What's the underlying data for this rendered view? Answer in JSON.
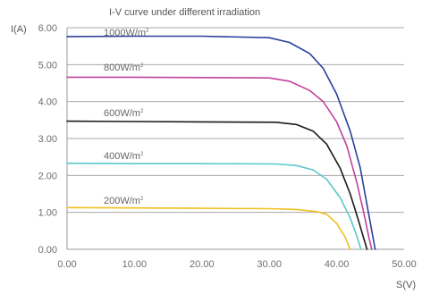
{
  "chart_data": {
    "type": "line",
    "title": "I-V curve under different irradiation",
    "ylabel": "I(A)",
    "xlabel": "S(V)",
    "xlim": [
      0,
      50
    ],
    "ylim": [
      0,
      6
    ],
    "xticks": [
      "0.00",
      "10.00",
      "20.00",
      "30.00",
      "40.00",
      "50.00"
    ],
    "yticks": [
      "0.00",
      "1.00",
      "2.00",
      "3.00",
      "4.00",
      "5.00",
      "6.00"
    ],
    "grid": "horizontal",
    "series": [
      {
        "name": "1000W/m²",
        "label_main": "1000W/m",
        "label_sup": "2",
        "color": "#2b3f9e",
        "points": [
          [
            0,
            5.76
          ],
          [
            10,
            5.77
          ],
          [
            20,
            5.77
          ],
          [
            30,
            5.73
          ],
          [
            33,
            5.6
          ],
          [
            36,
            5.3
          ],
          [
            38,
            4.9
          ],
          [
            40,
            4.2
          ],
          [
            42,
            3.2
          ],
          [
            43.5,
            2.2
          ],
          [
            44.5,
            1.2
          ],
          [
            45.3,
            0.4
          ],
          [
            45.7,
            0
          ]
        ]
      },
      {
        "name": "800W/m²",
        "label_main": "800W/m",
        "label_sup": "2",
        "color": "#c0429a",
        "points": [
          [
            0,
            4.66
          ],
          [
            10,
            4.66
          ],
          [
            20,
            4.65
          ],
          [
            30,
            4.64
          ],
          [
            33,
            4.55
          ],
          [
            36,
            4.3
          ],
          [
            38,
            4.0
          ],
          [
            40,
            3.45
          ],
          [
            41.5,
            2.8
          ],
          [
            43,
            1.8
          ],
          [
            44,
            1.0
          ],
          [
            44.8,
            0.3
          ],
          [
            45.2,
            0
          ]
        ]
      },
      {
        "name": "600W/m²",
        "label_main": "600W/m",
        "label_sup": "2",
        "color": "#1a1a1a",
        "points": [
          [
            0,
            3.47
          ],
          [
            10,
            3.46
          ],
          [
            20,
            3.45
          ],
          [
            31,
            3.44
          ],
          [
            34,
            3.38
          ],
          [
            36.5,
            3.2
          ],
          [
            38.5,
            2.85
          ],
          [
            40.5,
            2.2
          ],
          [
            42,
            1.5
          ],
          [
            43.2,
            0.8
          ],
          [
            44,
            0.3
          ],
          [
            44.5,
            0
          ]
        ]
      },
      {
        "name": "400W/m²",
        "label_main": "400W/m",
        "label_sup": "2",
        "color": "#5cc8cc",
        "points": [
          [
            0,
            2.33
          ],
          [
            10,
            2.32
          ],
          [
            20,
            2.32
          ],
          [
            31,
            2.31
          ],
          [
            34,
            2.27
          ],
          [
            36.5,
            2.15
          ],
          [
            38.5,
            1.9
          ],
          [
            40.5,
            1.4
          ],
          [
            42,
            0.85
          ],
          [
            43,
            0.35
          ],
          [
            43.6,
            0
          ]
        ]
      },
      {
        "name": "200W/m²",
        "label_main": "200W/m",
        "label_sup": "2",
        "color": "#f0c020",
        "points": [
          [
            0,
            1.13
          ],
          [
            10,
            1.12
          ],
          [
            20,
            1.11
          ],
          [
            30,
            1.1
          ],
          [
            34,
            1.08
          ],
          [
            37,
            1.02
          ],
          [
            38.5,
            0.95
          ],
          [
            40,
            0.7
          ],
          [
            41.2,
            0.35
          ],
          [
            42,
            0
          ]
        ]
      }
    ]
  }
}
